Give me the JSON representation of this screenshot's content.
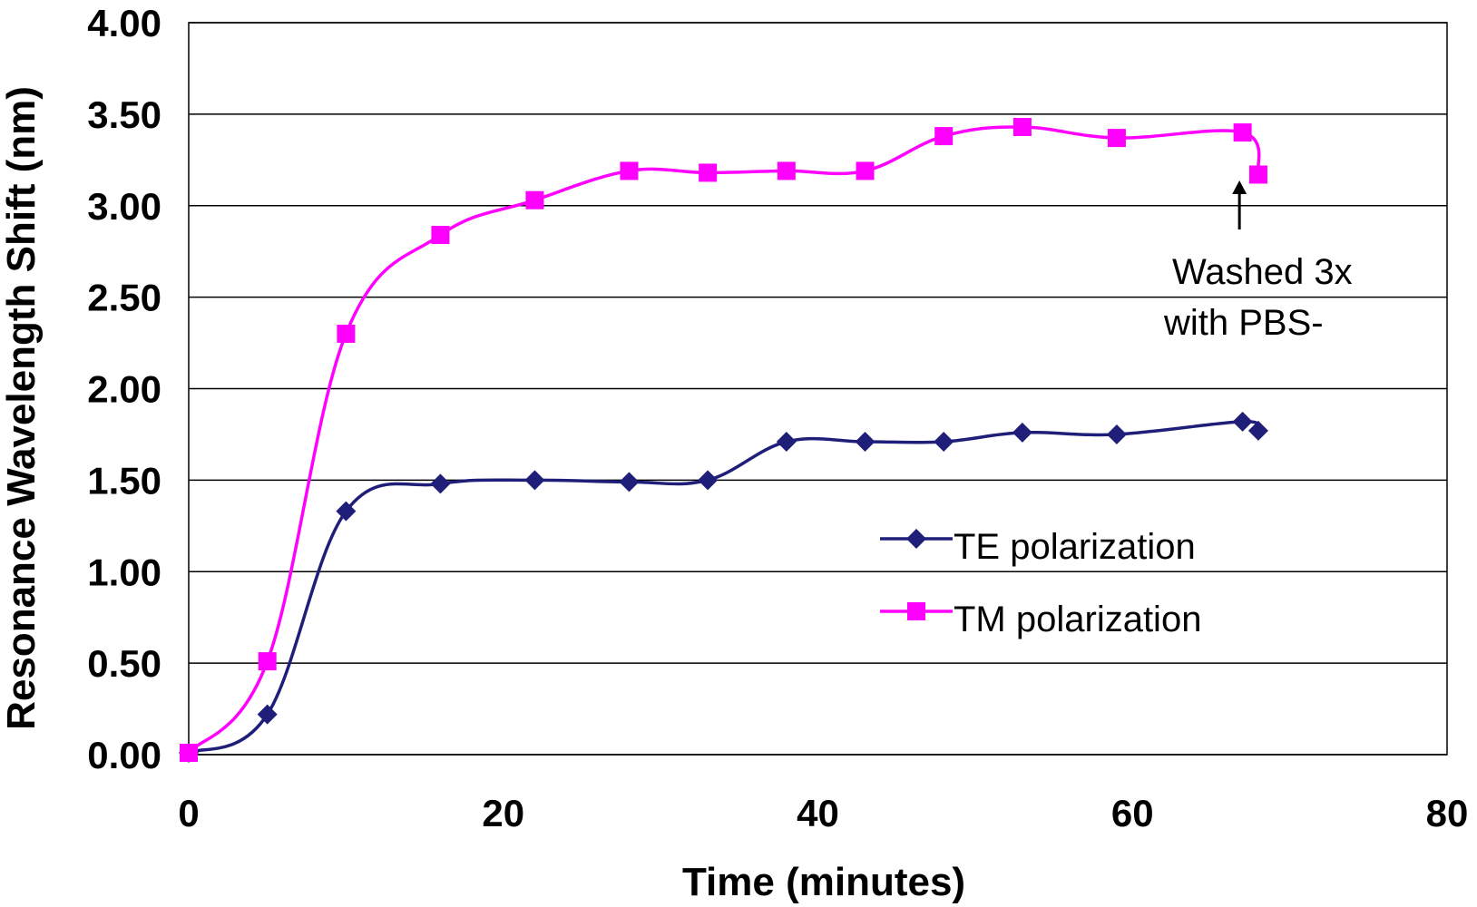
{
  "chart_data": {
    "type": "line",
    "xlabel": "Time (minutes)",
    "ylabel": "Resonance Wavelength Shift (nm)",
    "xlim": [
      0,
      80
    ],
    "ylim": [
      0,
      4
    ],
    "x_ticks": [
      "0",
      "20",
      "40",
      "60",
      "80"
    ],
    "y_ticks": [
      "0.00",
      "0.50",
      "1.00",
      "1.50",
      "2.00",
      "2.50",
      "3.00",
      "3.50",
      "4.00"
    ],
    "grid": "horizontal",
    "legend_position": "right",
    "series": [
      {
        "name": "TE polarization",
        "color": "#1f1f7a",
        "marker": "diamond",
        "x": [
          0,
          5,
          10,
          16,
          22,
          28,
          33,
          38,
          43,
          48,
          53,
          59,
          67,
          68
        ],
        "y": [
          0.01,
          0.22,
          1.33,
          1.48,
          1.5,
          1.49,
          1.5,
          1.71,
          1.71,
          1.71,
          1.76,
          1.75,
          1.82,
          1.77
        ]
      },
      {
        "name": "TM polarization",
        "color": "#ff00ff",
        "marker": "square",
        "x": [
          0,
          5,
          10,
          16,
          22,
          28,
          33,
          38,
          43,
          48,
          53,
          59,
          67,
          68
        ],
        "y": [
          0.01,
          0.51,
          2.3,
          2.84,
          3.03,
          3.19,
          3.18,
          3.19,
          3.19,
          3.38,
          3.43,
          3.37,
          3.4,
          3.17
        ]
      }
    ],
    "annotation": {
      "lines": [
        "Washed 3x",
        "with PBS-"
      ],
      "arrow_x": 66.8
    }
  }
}
